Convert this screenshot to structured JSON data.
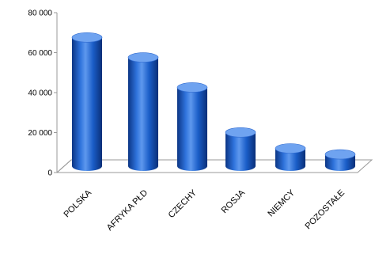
{
  "chart_data": {
    "type": "bar",
    "style": "3d-cylinder",
    "categories": [
      "POLSKA",
      "AFRYKA PŁD",
      "CZECHY",
      "ROSJA",
      "NIEMCY",
      "POZOSTAŁE"
    ],
    "values": [
      66000,
      56000,
      41000,
      18500,
      10500,
      7500
    ],
    "ylim": [
      0,
      80000
    ],
    "yticks": [
      0,
      20000,
      40000,
      60000,
      80000
    ],
    "ytick_labels": [
      "0",
      "20 000",
      "40 000",
      "60 000",
      "80 000"
    ],
    "grid": false,
    "legend": "none",
    "colors": {
      "bar": "#1a5dc7",
      "bar_dark": "#0a2f78",
      "bar_light": "#6fa3f0",
      "floor": "#ffffff"
    }
  }
}
